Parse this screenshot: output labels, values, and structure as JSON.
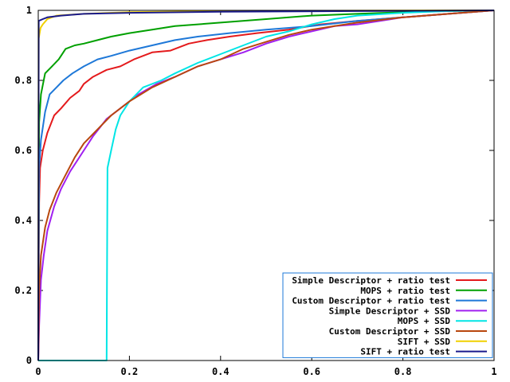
{
  "chart_data": {
    "type": "line",
    "title": "",
    "xlabel": "",
    "ylabel": "",
    "xlim": [
      0,
      1
    ],
    "ylim": [
      0,
      1
    ],
    "x_ticks": [
      "0",
      "0.2",
      "0.4",
      "0.6",
      "0.8",
      "1"
    ],
    "y_ticks": [
      "0",
      "0.2",
      "0.4",
      "0.6",
      "0.8",
      "1"
    ],
    "x_tick_values": [
      0,
      0.2,
      0.4,
      0.6,
      0.8,
      1
    ],
    "y_tick_values": [
      0,
      0.2,
      0.4,
      0.6,
      0.8,
      1
    ],
    "grid": false,
    "legend_position": "bottom-right",
    "series": [
      {
        "name": "Simple Descriptor + ratio test",
        "color": "#e41a1c",
        "points": [
          [
            0,
            0
          ],
          [
            0.002,
            0.45
          ],
          [
            0.004,
            0.55
          ],
          [
            0.01,
            0.6
          ],
          [
            0.02,
            0.65
          ],
          [
            0.035,
            0.7
          ],
          [
            0.05,
            0.72
          ],
          [
            0.07,
            0.75
          ],
          [
            0.09,
            0.77
          ],
          [
            0.1,
            0.79
          ],
          [
            0.12,
            0.81
          ],
          [
            0.15,
            0.83
          ],
          [
            0.18,
            0.84
          ],
          [
            0.21,
            0.86
          ],
          [
            0.25,
            0.88
          ],
          [
            0.29,
            0.885
          ],
          [
            0.33,
            0.905
          ],
          [
            0.37,
            0.915
          ],
          [
            0.42,
            0.925
          ],
          [
            0.48,
            0.935
          ],
          [
            0.55,
            0.945
          ],
          [
            0.62,
            0.96
          ],
          [
            0.7,
            0.97
          ],
          [
            0.8,
            0.98
          ],
          [
            0.9,
            0.99
          ],
          [
            1,
            1
          ]
        ]
      },
      {
        "name": "MOPS + ratio test",
        "color": "#00a000",
        "points": [
          [
            0,
            0
          ],
          [
            0.002,
            0.68
          ],
          [
            0.006,
            0.76
          ],
          [
            0.015,
            0.82
          ],
          [
            0.03,
            0.84
          ],
          [
            0.045,
            0.86
          ],
          [
            0.06,
            0.89
          ],
          [
            0.08,
            0.9
          ],
          [
            0.1,
            0.905
          ],
          [
            0.13,
            0.915
          ],
          [
            0.16,
            0.925
          ],
          [
            0.2,
            0.935
          ],
          [
            0.25,
            0.945
          ],
          [
            0.3,
            0.955
          ],
          [
            0.4,
            0.965
          ],
          [
            0.5,
            0.975
          ],
          [
            0.6,
            0.985
          ],
          [
            0.7,
            0.99
          ],
          [
            0.8,
            0.995
          ],
          [
            0.9,
            0.998
          ],
          [
            1,
            1
          ]
        ]
      },
      {
        "name": "Custom Descriptor + ratio test",
        "color": "#1e78d8",
        "points": [
          [
            0,
            0
          ],
          [
            0.002,
            0.55
          ],
          [
            0.006,
            0.63
          ],
          [
            0.015,
            0.71
          ],
          [
            0.025,
            0.76
          ],
          [
            0.04,
            0.78
          ],
          [
            0.055,
            0.8
          ],
          [
            0.075,
            0.82
          ],
          [
            0.1,
            0.84
          ],
          [
            0.13,
            0.86
          ],
          [
            0.16,
            0.87
          ],
          [
            0.2,
            0.885
          ],
          [
            0.25,
            0.9
          ],
          [
            0.3,
            0.915
          ],
          [
            0.35,
            0.925
          ],
          [
            0.42,
            0.935
          ],
          [
            0.5,
            0.945
          ],
          [
            0.6,
            0.955
          ],
          [
            0.7,
            0.97
          ],
          [
            0.8,
            0.98
          ],
          [
            0.9,
            0.99
          ],
          [
            1,
            1
          ]
        ]
      },
      {
        "name": "Simple Descriptor + SSD",
        "color": "#a020f0",
        "points": [
          [
            0,
            0
          ],
          [
            0.002,
            0.1
          ],
          [
            0.006,
            0.23
          ],
          [
            0.012,
            0.3
          ],
          [
            0.02,
            0.37
          ],
          [
            0.035,
            0.44
          ],
          [
            0.05,
            0.49
          ],
          [
            0.07,
            0.54
          ],
          [
            0.09,
            0.58
          ],
          [
            0.1,
            0.6
          ],
          [
            0.12,
            0.64
          ],
          [
            0.15,
            0.69
          ],
          [
            0.18,
            0.72
          ],
          [
            0.22,
            0.76
          ],
          [
            0.26,
            0.79
          ],
          [
            0.3,
            0.81
          ],
          [
            0.35,
            0.84
          ],
          [
            0.4,
            0.86
          ],
          [
            0.45,
            0.88
          ],
          [
            0.5,
            0.905
          ],
          [
            0.55,
            0.925
          ],
          [
            0.6,
            0.94
          ],
          [
            0.65,
            0.955
          ],
          [
            0.7,
            0.96
          ],
          [
            0.75,
            0.97
          ],
          [
            0.8,
            0.98
          ],
          [
            0.9,
            0.99
          ],
          [
            1,
            1
          ]
        ]
      },
      {
        "name": "MOPS + SSD",
        "color": "#00e5e5",
        "points": [
          [
            0,
            0
          ],
          [
            0.15,
            0
          ],
          [
            0.152,
            0.55
          ],
          [
            0.16,
            0.6
          ],
          [
            0.17,
            0.66
          ],
          [
            0.18,
            0.7
          ],
          [
            0.2,
            0.74
          ],
          [
            0.23,
            0.78
          ],
          [
            0.27,
            0.8
          ],
          [
            0.3,
            0.82
          ],
          [
            0.35,
            0.85
          ],
          [
            0.4,
            0.875
          ],
          [
            0.45,
            0.9
          ],
          [
            0.5,
            0.925
          ],
          [
            0.55,
            0.94
          ],
          [
            0.6,
            0.96
          ],
          [
            0.65,
            0.975
          ],
          [
            0.7,
            0.985
          ],
          [
            0.8,
            0.993
          ],
          [
            0.9,
            0.998
          ],
          [
            1,
            1
          ]
        ]
      },
      {
        "name": "Custom Descriptor + SSD",
        "color": "#b8470e",
        "points": [
          [
            0,
            0
          ],
          [
            0.002,
            0.2
          ],
          [
            0.006,
            0.3
          ],
          [
            0.015,
            0.38
          ],
          [
            0.025,
            0.43
          ],
          [
            0.04,
            0.48
          ],
          [
            0.06,
            0.53
          ],
          [
            0.08,
            0.58
          ],
          [
            0.1,
            0.62
          ],
          [
            0.13,
            0.66
          ],
          [
            0.16,
            0.7
          ],
          [
            0.2,
            0.74
          ],
          [
            0.25,
            0.78
          ],
          [
            0.3,
            0.81
          ],
          [
            0.35,
            0.84
          ],
          [
            0.4,
            0.86
          ],
          [
            0.45,
            0.89
          ],
          [
            0.5,
            0.91
          ],
          [
            0.55,
            0.93
          ],
          [
            0.6,
            0.945
          ],
          [
            0.65,
            0.955
          ],
          [
            0.7,
            0.965
          ],
          [
            0.8,
            0.98
          ],
          [
            0.9,
            0.99
          ],
          [
            1,
            1
          ]
        ]
      },
      {
        "name": "SIFT + SSD",
        "color": "#f0d000",
        "points": [
          [
            0,
            0
          ],
          [
            0.001,
            0.92
          ],
          [
            0.005,
            0.95
          ],
          [
            0.01,
            0.96
          ],
          [
            0.02,
            0.975
          ],
          [
            0.04,
            0.985
          ],
          [
            0.1,
            0.99
          ],
          [
            0.2,
            0.995
          ],
          [
            0.4,
            0.998
          ],
          [
            0.7,
            0.999
          ],
          [
            1,
            1
          ]
        ]
      },
      {
        "name": "SIFT + ratio test",
        "color": "#1a1a8c",
        "points": [
          [
            0,
            0
          ],
          [
            0.001,
            0.97
          ],
          [
            0.01,
            0.975
          ],
          [
            0.02,
            0.98
          ],
          [
            0.05,
            0.985
          ],
          [
            0.1,
            0.99
          ],
          [
            0.2,
            0.993
          ],
          [
            0.4,
            0.996
          ],
          [
            0.7,
            0.998
          ],
          [
            1,
            1
          ]
        ]
      }
    ]
  }
}
